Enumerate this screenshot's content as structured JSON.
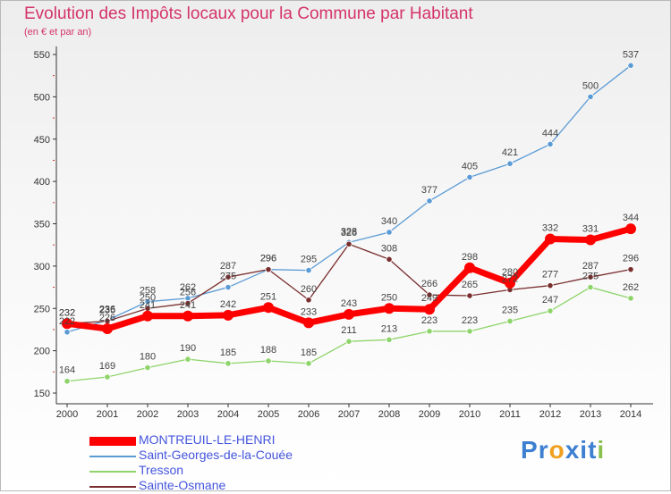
{
  "chart_data": {
    "type": "line",
    "title": "Evolution des Impôts locaux pour la Commune par Habitant",
    "subtitle": "(en € et par an)",
    "x": [
      "2000",
      "2001",
      "2002",
      "2003",
      "2004",
      "2005",
      "2006",
      "2007",
      "2008",
      "2009",
      "2010",
      "2011",
      "2012",
      "2013",
      "2014"
    ],
    "yticks": [
      "150",
      "200",
      "250",
      "300",
      "350",
      "400",
      "450",
      "500",
      "550"
    ],
    "ylim": [
      150,
      550
    ],
    "grid": false,
    "legend_position": "bottom-left",
    "series": [
      {
        "name": "MONTREUIL-LE-HENRI",
        "color": "#ff0000",
        "values": [
          232,
          226,
          241,
          241,
          242,
          251,
          233,
          243,
          250,
          249,
          298,
          280,
          332,
          331,
          344
        ],
        "labels": [
          "232",
          "226",
          "241",
          "241",
          "242",
          "251",
          "233",
          "243",
          "250",
          "249",
          "298",
          "280",
          "332",
          "331",
          "344"
        ]
      },
      {
        "name": "Saint-Georges-de-la-Couée",
        "color": "#5b9bd5",
        "values": [
          222,
          236,
          258,
          262,
          275,
          296,
          295,
          328,
          340,
          377,
          405,
          421,
          444,
          500,
          537
        ],
        "labels": [
          "222",
          "236",
          "258",
          "262",
          "275",
          "296",
          "295",
          "328",
          "340",
          "377",
          "405",
          "421",
          "444",
          "500",
          "537"
        ]
      },
      {
        "name": "Tresson",
        "color": "#8ed46a",
        "values": [
          164,
          169,
          180,
          190,
          185,
          188,
          185,
          211,
          213,
          223,
          223,
          235,
          247,
          275,
          262
        ],
        "labels": [
          "164",
          "169",
          "180",
          "190",
          "185",
          "188",
          "185",
          "211",
          "213",
          "223",
          "223",
          "235",
          "247",
          "275",
          "262"
        ]
      },
      {
        "name": "Sainte-Osmane",
        "color": "#7a2e2e",
        "values": [
          232,
          235,
          250,
          256,
          287,
          296,
          260,
          326,
          308,
          266,
          265,
          272,
          277,
          287,
          296
        ],
        "labels": [
          "232",
          "235",
          "250",
          "256",
          "287",
          "296",
          "260",
          "326",
          "308",
          "266",
          "265",
          "272",
          "277",
          "287",
          "296"
        ]
      }
    ]
  },
  "logo": {
    "text": "Proxiti",
    "letters": [
      "P",
      "r",
      "o",
      "x",
      "i",
      "t",
      "i"
    ],
    "colors": [
      "#3d7fd0",
      "#3d7fd0",
      "#f0a020",
      "#3d7fd0",
      "#3d7fd0",
      "#3d7fd0",
      "#8ac050"
    ]
  }
}
